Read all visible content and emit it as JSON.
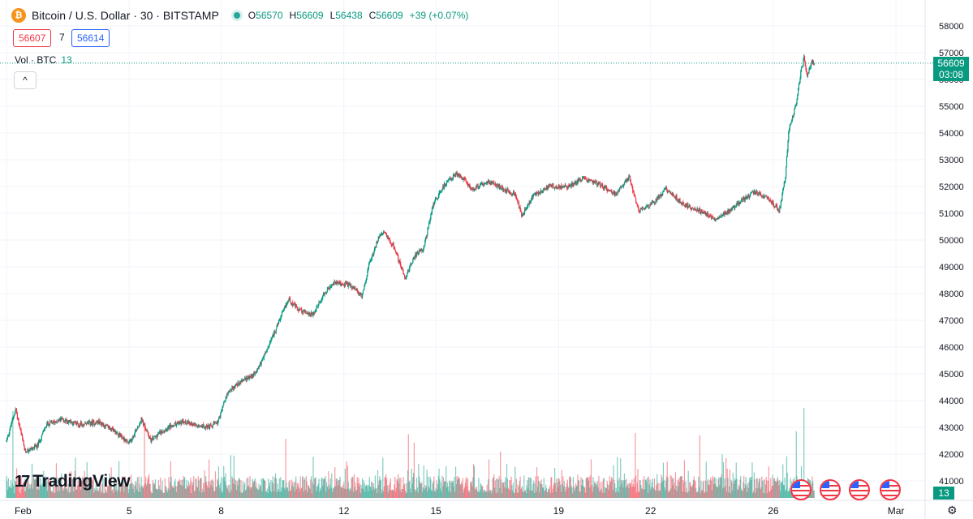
{
  "header": {
    "coin_glyph": "₿",
    "title": "Bitcoin / U.S. Dollar · 30 · BITSTAMP",
    "o_label": "O",
    "o_value": "56570",
    "h_label": "H",
    "h_value": "56609",
    "l_label": "L",
    "l_value": "56438",
    "c_label": "C",
    "c_value": "56609",
    "change": "+39 (+0.07%)"
  },
  "trade": {
    "sell_price": "56607",
    "spread": "7",
    "buy_price": "56614"
  },
  "volume_legend": {
    "label": "Vol · BTC",
    "value": "13",
    "collapse_glyph": "^"
  },
  "branding": {
    "logo_mark": "17",
    "logo_text": "TradingView"
  },
  "last_price": {
    "value": "56609",
    "countdown": "03:08"
  },
  "volume_last": "13",
  "settings_glyph": "⚙",
  "colors": {
    "up": "#089981",
    "down": "#f23645",
    "grid": "#f0f3fa",
    "axis_text": "#131722"
  },
  "chart_data": {
    "type": "candlestick",
    "symbol": "BTC/USD",
    "interval": "30",
    "ylim": [
      40750,
      58300
    ],
    "y_ticks": [
      41000,
      42000,
      43000,
      44000,
      45000,
      46000,
      47000,
      48000,
      49000,
      50000,
      51000,
      52000,
      53000,
      54000,
      55000,
      56000,
      57000,
      58000
    ],
    "x_ticks": [
      {
        "label": "Feb",
        "day": 1
      },
      {
        "label": "5",
        "day": 5
      },
      {
        "label": "8",
        "day": 8
      },
      {
        "label": "12",
        "day": 12
      },
      {
        "label": "15",
        "day": 15
      },
      {
        "label": "19",
        "day": 19
      },
      {
        "label": "22",
        "day": 22
      },
      {
        "label": "26",
        "day": 26
      },
      {
        "label": "Mar",
        "day": 30
      }
    ],
    "x_domain_days": [
      1,
      30.95
    ],
    "last_close": 56609,
    "price_path": [
      [
        1.0,
        42500
      ],
      [
        1.3,
        43700
      ],
      [
        1.6,
        42100
      ],
      [
        2.0,
        42300
      ],
      [
        2.3,
        43100
      ],
      [
        2.8,
        43300
      ],
      [
        3.4,
        43100
      ],
      [
        4.0,
        43200
      ],
      [
        4.6,
        42800
      ],
      [
        5.0,
        42400
      ],
      [
        5.4,
        43300
      ],
      [
        5.7,
        42500
      ],
      [
        6.1,
        42900
      ],
      [
        6.7,
        43200
      ],
      [
        7.2,
        43100
      ],
      [
        7.6,
        43000
      ],
      [
        7.9,
        43200
      ],
      [
        8.2,
        44300
      ],
      [
        8.6,
        44700
      ],
      [
        9.1,
        45000
      ],
      [
        9.5,
        45900
      ],
      [
        9.9,
        47000
      ],
      [
        10.2,
        47800
      ],
      [
        10.5,
        47400
      ],
      [
        11.0,
        47200
      ],
      [
        11.3,
        47900
      ],
      [
        11.7,
        48400
      ],
      [
        12.2,
        48300
      ],
      [
        12.6,
        47900
      ],
      [
        12.8,
        49000
      ],
      [
        13.1,
        50000
      ],
      [
        13.3,
        50300
      ],
      [
        13.6,
        49800
      ],
      [
        14.0,
        48600
      ],
      [
        14.3,
        49400
      ],
      [
        14.6,
        49700
      ],
      [
        14.9,
        51300
      ],
      [
        15.3,
        52100
      ],
      [
        15.7,
        52500
      ],
      [
        16.2,
        51900
      ],
      [
        16.7,
        52200
      ],
      [
        17.2,
        51900
      ],
      [
        17.6,
        51700
      ],
      [
        17.8,
        50900
      ],
      [
        18.2,
        51700
      ],
      [
        18.7,
        52000
      ],
      [
        19.3,
        52000
      ],
      [
        19.8,
        52300
      ],
      [
        20.3,
        52100
      ],
      [
        20.9,
        51700
      ],
      [
        21.3,
        52400
      ],
      [
        21.6,
        51100
      ],
      [
        22.0,
        51300
      ],
      [
        22.5,
        51900
      ],
      [
        23.1,
        51300
      ],
      [
        23.6,
        51100
      ],
      [
        24.1,
        50800
      ],
      [
        24.6,
        51100
      ],
      [
        25.0,
        51500
      ],
      [
        25.4,
        51800
      ],
      [
        25.8,
        51600
      ],
      [
        26.2,
        51100
      ],
      [
        26.4,
        52400
      ],
      [
        26.5,
        54100
      ],
      [
        26.75,
        55100
      ],
      [
        26.9,
        56300
      ],
      [
        27.0,
        56800
      ],
      [
        27.1,
        56100
      ],
      [
        27.25,
        56650
      ],
      [
        27.35,
        56609
      ]
    ],
    "volume_max_btc": 210,
    "volume_spikes": [
      [
        1.2,
        150
      ],
      [
        5.5,
        125
      ],
      [
        10.1,
        102
      ],
      [
        14.1,
        110
      ],
      [
        14.3,
        95
      ],
      [
        17.1,
        80
      ],
      [
        21.5,
        112
      ],
      [
        23.6,
        108
      ],
      [
        26.75,
        115
      ],
      [
        27.0,
        155
      ]
    ]
  }
}
